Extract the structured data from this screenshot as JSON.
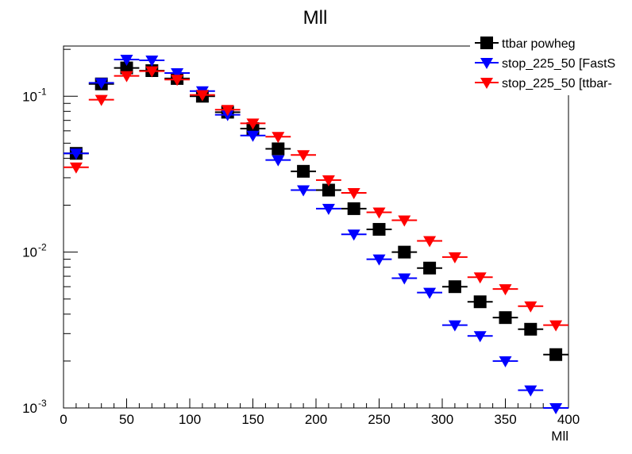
{
  "chart_data": {
    "type": "scatter",
    "title": "Mll",
    "xlabel": "Mll",
    "ylabel": "",
    "xlim": [
      0,
      400
    ],
    "ylim": [
      0.001,
      0.21
    ],
    "y_scale": "log",
    "grid": false,
    "legend_position": "top-right",
    "x_tick_labels": [
      "0",
      "50",
      "100",
      "150",
      "200",
      "250",
      "300",
      "350",
      "400"
    ],
    "y_tick_labels": [
      {
        "base": "10",
        "exp": "-1",
        "value": 0.1
      },
      {
        "base": "10",
        "exp": "-2",
        "value": 0.01
      },
      {
        "base": "10",
        "exp": "-3",
        "value": 0.001
      }
    ],
    "bin_width": 20,
    "x": [
      10,
      30,
      50,
      70,
      90,
      110,
      130,
      150,
      170,
      190,
      210,
      230,
      250,
      270,
      290,
      310,
      330,
      350,
      370,
      390
    ],
    "series": [
      {
        "name": "ttbar powheg",
        "marker": "square",
        "color": "#000000",
        "values": [
          0.043,
          0.12,
          0.152,
          0.146,
          0.13,
          0.1,
          0.079,
          0.062,
          0.046,
          0.033,
          0.025,
          0.019,
          0.014,
          0.01,
          0.0079,
          0.006,
          0.0048,
          0.0038,
          0.0032,
          0.0022
        ]
      },
      {
        "name": "stop_225_50 [FastS",
        "marker": "triangle-down",
        "color": "#0000ff",
        "values": [
          0.043,
          0.122,
          0.172,
          0.17,
          0.141,
          0.108,
          0.076,
          0.056,
          0.039,
          0.025,
          0.019,
          0.013,
          0.009,
          0.0068,
          0.0055,
          0.0034,
          0.0029,
          0.002,
          0.0013,
          0.001
        ]
      },
      {
        "name": "stop_225_50 [ttbar-",
        "marker": "triangle-down",
        "color": "#ff0000",
        "values": [
          0.035,
          0.095,
          0.135,
          0.145,
          0.128,
          0.102,
          0.082,
          0.067,
          0.055,
          0.042,
          0.029,
          0.024,
          0.018,
          0.016,
          0.0118,
          0.0093,
          0.0069,
          0.0058,
          0.0045,
          0.0034
        ]
      }
    ]
  }
}
